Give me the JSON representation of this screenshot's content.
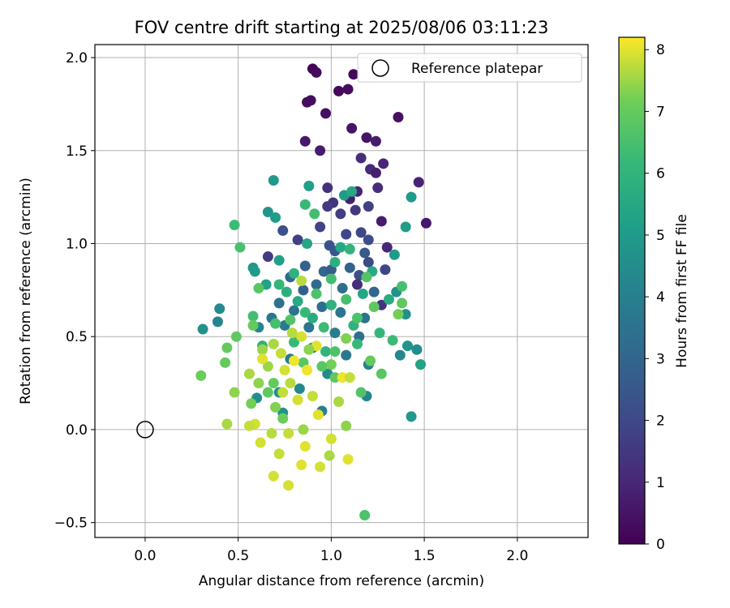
{
  "chart_data": {
    "type": "scatter",
    "title": "FOV centre drift starting at 2025/08/06 03:11:23",
    "xlabel": "Angular distance from reference (arcmin)",
    "ylabel": "Rotation from reference (arcmin)",
    "xlim": [
      -0.27,
      2.38
    ],
    "ylim": [
      -0.58,
      2.07
    ],
    "xticks": [
      0.0,
      0.5,
      1.0,
      1.5,
      2.0
    ],
    "xtick_labels": [
      "0.0",
      "0.5",
      "1.0",
      "1.5",
      "2.0"
    ],
    "yticks": [
      -0.5,
      0.0,
      0.5,
      1.0,
      1.5,
      2.0
    ],
    "ytick_labels": [
      "−0.5",
      "0.0",
      "0.5",
      "1.0",
      "1.5",
      "2.0"
    ],
    "grid": true,
    "legend": {
      "position": "top-right",
      "entries": [
        "Reference platepar"
      ]
    },
    "reference_point": {
      "label": "Reference platepar",
      "x": 0.0,
      "y": 0.0
    },
    "colorbar": {
      "label": "Hours from first FF file",
      "colormap": "viridis",
      "range": [
        0,
        8.2
      ],
      "ticks": [
        0,
        1,
        2,
        3,
        4,
        5,
        6,
        7,
        8
      ],
      "tick_labels": [
        "0",
        "1",
        "2",
        "3",
        "4",
        "5",
        "6",
        "7",
        "8"
      ]
    },
    "points": [
      [
        0.9,
        1.94,
        0.1
      ],
      [
        0.92,
        1.92,
        0.2
      ],
      [
        1.12,
        1.91,
        0.2
      ],
      [
        1.04,
        1.82,
        0.2
      ],
      [
        1.09,
        1.83,
        0.3
      ],
      [
        0.87,
        1.76,
        0.3
      ],
      [
        0.89,
        1.77,
        0.3
      ],
      [
        0.97,
        1.7,
        0.4
      ],
      [
        1.36,
        1.68,
        0.4
      ],
      [
        1.11,
        1.62,
        0.5
      ],
      [
        1.19,
        1.57,
        0.5
      ],
      [
        0.86,
        1.55,
        0.6
      ],
      [
        0.94,
        1.5,
        0.7
      ],
      [
        1.24,
        1.55,
        0.7
      ],
      [
        1.16,
        1.46,
        1.2
      ],
      [
        1.21,
        1.4,
        1.1
      ],
      [
        1.28,
        1.43,
        1.0
      ],
      [
        1.24,
        1.38,
        0.8
      ],
      [
        1.47,
        1.33,
        0.9
      ],
      [
        1.51,
        1.11,
        0.6
      ],
      [
        1.1,
        1.24,
        0.8
      ],
      [
        1.14,
        1.28,
        0.9
      ],
      [
        0.98,
        1.3,
        1.3
      ],
      [
        1.01,
        1.22,
        1.4
      ],
      [
        1.25,
        1.3,
        1.2
      ],
      [
        1.05,
        1.16,
        1.7
      ],
      [
        0.98,
        1.2,
        1.6
      ],
      [
        1.13,
        1.18,
        1.5
      ],
      [
        1.2,
        1.2,
        1.8
      ],
      [
        0.94,
        1.09,
        1.9
      ],
      [
        1.27,
        1.12,
        0.7
      ],
      [
        0.82,
        1.02,
        1.8
      ],
      [
        1.16,
        1.06,
        2.0
      ],
      [
        1.2,
        1.02,
        2.2
      ],
      [
        0.74,
        1.07,
        2.3
      ],
      [
        1.08,
        1.05,
        2.0
      ],
      [
        0.99,
        0.99,
        2.4
      ],
      [
        1.02,
        0.96,
        2.5
      ],
      [
        1.18,
        0.95,
        2.6
      ],
      [
        1.2,
        0.9,
        2.1
      ],
      [
        1.3,
        0.98,
        1.0
      ],
      [
        0.66,
        0.93,
        1.6
      ],
      [
        0.86,
        0.88,
        2.8
      ],
      [
        0.96,
        0.85,
        3.0
      ],
      [
        1.0,
        0.86,
        2.7
      ],
      [
        1.1,
        0.87,
        2.9
      ],
      [
        1.15,
        0.83,
        2.3
      ],
      [
        1.14,
        0.78,
        1.2
      ],
      [
        1.29,
        0.86,
        1.9
      ],
      [
        0.78,
        0.82,
        3.1
      ],
      [
        0.85,
        0.75,
        2.8
      ],
      [
        0.92,
        0.78,
        3.2
      ],
      [
        1.06,
        0.76,
        3.3
      ],
      [
        1.23,
        0.74,
        3.0
      ],
      [
        1.27,
        0.67,
        1.4
      ],
      [
        0.72,
        0.68,
        3.4
      ],
      [
        0.8,
        0.64,
        3.5
      ],
      [
        0.95,
        0.66,
        3.3
      ],
      [
        1.05,
        0.63,
        3.6
      ],
      [
        1.18,
        0.6,
        3.5
      ],
      [
        0.68,
        0.6,
        3.7
      ],
      [
        0.75,
        0.56,
        3.8
      ],
      [
        0.88,
        0.55,
        3.6
      ],
      [
        1.02,
        0.52,
        3.9
      ],
      [
        1.15,
        0.5,
        3.4
      ],
      [
        0.61,
        0.55,
        4.2
      ],
      [
        0.9,
        0.44,
        4.0
      ],
      [
        1.08,
        0.4,
        3.7
      ],
      [
        1.2,
        0.35,
        4.1
      ],
      [
        0.78,
        0.38,
        3.8
      ],
      [
        0.98,
        0.3,
        4.4
      ],
      [
        0.83,
        0.22,
        4.3
      ],
      [
        0.6,
        0.17,
        4.5
      ],
      [
        0.72,
        0.2,
        4.6
      ],
      [
        1.19,
        0.18,
        4.2
      ],
      [
        0.95,
        0.1,
        4.0
      ],
      [
        0.74,
        0.09,
        4.7
      ],
      [
        1.43,
        0.07,
        4.9
      ],
      [
        0.31,
        0.54,
        4.6
      ],
      [
        0.39,
        0.58,
        4.2
      ],
      [
        0.4,
        0.65,
        4.4
      ],
      [
        1.41,
        0.45,
        4.8
      ],
      [
        1.46,
        0.43,
        4.5
      ],
      [
        1.37,
        0.4,
        4.3
      ],
      [
        1.4,
        0.62,
        4.6
      ],
      [
        1.35,
        0.74,
        4.7
      ],
      [
        1.34,
        0.94,
        5.0
      ],
      [
        1.4,
        1.09,
        5.1
      ],
      [
        1.43,
        1.25,
        5.0
      ],
      [
        1.48,
        0.35,
        5.3
      ],
      [
        0.66,
        1.17,
        4.8
      ],
      [
        0.7,
        1.14,
        5.1
      ],
      [
        0.69,
        1.34,
        4.9
      ],
      [
        0.88,
        1.31,
        5.2
      ],
      [
        1.07,
        1.26,
        5.0
      ],
      [
        1.11,
        1.28,
        5.5
      ],
      [
        0.58,
        0.87,
        4.9
      ],
      [
        0.59,
        0.85,
        5.1
      ],
      [
        0.65,
        0.78,
        5.3
      ],
      [
        0.72,
        0.91,
        5.2
      ],
      [
        0.87,
        1.0,
        5.4
      ],
      [
        1.05,
        0.98,
        5.5
      ],
      [
        1.22,
        0.85,
        5.6
      ],
      [
        1.17,
        0.73,
        5.4
      ],
      [
        1.31,
        0.7,
        5.7
      ],
      [
        0.76,
        0.74,
        5.8
      ],
      [
        0.82,
        0.69,
        5.6
      ],
      [
        0.9,
        0.6,
        5.7
      ],
      [
        1.0,
        0.67,
        5.9
      ],
      [
        1.12,
        0.56,
        6.0
      ],
      [
        1.26,
        0.52,
        6.1
      ],
      [
        0.63,
        0.45,
        5.9
      ],
      [
        0.8,
        0.47,
        6.2
      ],
      [
        0.97,
        0.42,
        6.0
      ],
      [
        1.14,
        0.46,
        6.2
      ],
      [
        1.33,
        0.48,
        6.3
      ],
      [
        0.58,
        0.61,
        6.4
      ],
      [
        0.7,
        0.57,
        6.5
      ],
      [
        0.86,
        1.21,
        6.2
      ],
      [
        0.91,
        1.16,
        6.4
      ],
      [
        1.38,
        0.77,
        6.5
      ],
      [
        0.48,
        1.1,
        6.3
      ],
      [
        0.51,
        0.98,
        6.5
      ],
      [
        0.49,
        0.5,
        6.9
      ],
      [
        0.44,
        0.44,
        7.0
      ],
      [
        0.3,
        0.29,
        7.1
      ],
      [
        0.43,
        0.36,
        7.0
      ],
      [
        0.69,
        0.25,
        7.0
      ],
      [
        0.85,
        0.36,
        6.8
      ],
      [
        1.02,
        0.28,
        6.9
      ],
      [
        1.16,
        0.2,
        6.7
      ],
      [
        1.36,
        0.62,
        7.2
      ],
      [
        1.38,
        0.68,
        6.9
      ],
      [
        0.57,
        0.14,
        7.2
      ],
      [
        0.48,
        0.2,
        7.4
      ],
      [
        0.56,
        0.3,
        7.6
      ],
      [
        0.66,
        0.34,
        7.5
      ],
      [
        0.78,
        0.25,
        7.7
      ],
      [
        0.9,
        0.18,
        7.8
      ],
      [
        1.04,
        0.15,
        7.6
      ],
      [
        0.59,
        0.03,
        7.9
      ],
      [
        0.61,
        0.25,
        7.4
      ],
      [
        0.7,
        0.12,
        7.3
      ],
      [
        0.74,
        0.2,
        7.8
      ],
      [
        0.82,
        0.16,
        7.9
      ],
      [
        0.93,
        0.08,
        8.0
      ],
      [
        1.06,
        0.28,
        8.1
      ],
      [
        0.56,
        0.02,
        7.8
      ],
      [
        0.44,
        0.03,
        7.6
      ],
      [
        0.62,
        -0.07,
        7.9
      ],
      [
        0.68,
        -0.02,
        7.7
      ],
      [
        0.77,
        -0.02,
        7.8
      ],
      [
        0.85,
        0.0,
        7.5
      ],
      [
        1.0,
        -0.05,
        7.9
      ],
      [
        1.08,
        0.02,
        7.4
      ],
      [
        0.63,
        0.43,
        7.5
      ],
      [
        0.73,
        0.41,
        7.8
      ],
      [
        0.84,
        0.5,
        7.9
      ],
      [
        0.92,
        0.45,
        8.0
      ],
      [
        0.87,
        0.32,
        8.1
      ],
      [
        0.79,
        0.52,
        7.7
      ],
      [
        0.63,
        0.38,
        8.0
      ],
      [
        0.69,
        0.46,
        7.6
      ],
      [
        0.88,
        0.43,
        7.4
      ],
      [
        1.08,
        0.49,
        7.3
      ],
      [
        1.0,
        0.35,
        7.2
      ],
      [
        1.1,
        0.28,
        7.8
      ],
      [
        0.75,
        0.32,
        7.9
      ],
      [
        0.8,
        0.37,
        8.1
      ],
      [
        0.84,
        0.8,
        7.7
      ],
      [
        0.72,
        -0.13,
        7.8
      ],
      [
        0.86,
        -0.09,
        8.0
      ],
      [
        0.69,
        -0.25,
        7.9
      ],
      [
        0.77,
        -0.3,
        7.9
      ],
      [
        0.84,
        -0.19,
        8.0
      ],
      [
        0.94,
        -0.2,
        7.9
      ],
      [
        0.99,
        -0.14,
        7.6
      ],
      [
        1.09,
        -0.16,
        8.0
      ],
      [
        1.18,
        -0.46,
        6.6
      ],
      [
        0.58,
        0.56,
        7.0
      ],
      [
        0.66,
        0.2,
        6.9
      ],
      [
        0.74,
        0.06,
        7.1
      ],
      [
        0.95,
        0.34,
        6.8
      ],
      [
        1.02,
        0.42,
        6.6
      ],
      [
        1.21,
        0.37,
        7.0
      ],
      [
        1.27,
        0.3,
        6.8
      ],
      [
        0.78,
        0.59,
        6.7
      ],
      [
        0.96,
        0.55,
        6.3
      ],
      [
        1.14,
        0.6,
        6.6
      ],
      [
        1.23,
        0.66,
        6.9
      ],
      [
        0.61,
        0.76,
        6.8
      ],
      [
        0.92,
        0.73,
        6.6
      ],
      [
        1.08,
        0.7,
        6.5
      ],
      [
        1.19,
        0.82,
        6.7
      ],
      [
        1.0,
        0.81,
        6.4
      ],
      [
        0.86,
        0.63,
        6.2
      ],
      [
        0.72,
        0.78,
        6.1
      ],
      [
        0.8,
        0.84,
        5.9
      ],
      [
        1.02,
        0.9,
        5.8
      ],
      [
        1.1,
        0.97,
        6.0
      ]
    ]
  }
}
